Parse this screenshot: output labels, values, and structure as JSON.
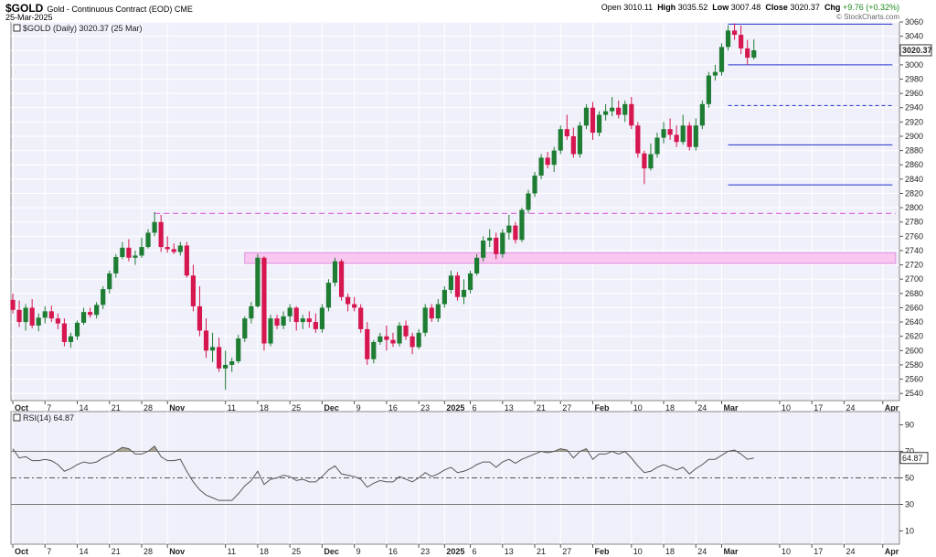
{
  "header": {
    "symbol": "$GOLD",
    "description": "Gold - Continuous Contract (EOD) CME",
    "date": "25-Mar-2025",
    "open_label": "Open",
    "open": "3010.11",
    "high_label": "High",
    "high": "3035.52",
    "low_label": "Low",
    "low": "3007.48",
    "close_label": "Close",
    "close": "3020.37",
    "chg_label": "Chg",
    "chg": "+9.76 (+0.32%)",
    "copyright": "© StockCharts.com"
  },
  "price_legend": "$GOLD (Daily) 3020.37 (25 Mar)",
  "rsi_legend": "RSI(14) 64.87",
  "last_price_label": "3020.37",
  "last_rsi_label": "64.87",
  "colors": {
    "up": "#1e7d32",
    "down": "#d6164f",
    "panel_bg": "#f0f0fb",
    "level_line": "#2233cc",
    "zone": "#f8c8f0",
    "resistance": "#e070e0",
    "rsi_line": "#555555",
    "rsi_fill": "#a09880"
  },
  "chart_data": [
    {
      "type": "candlestick",
      "title": "$GOLD (Daily) 3020.37 (25 Mar)",
      "ylim": [
        2530,
        3060
      ],
      "y_ticks": [
        2540,
        2560,
        2580,
        2600,
        2620,
        2640,
        2660,
        2680,
        2700,
        2720,
        2740,
        2760,
        2780,
        2800,
        2820,
        2840,
        2860,
        2880,
        2900,
        2920,
        2940,
        2960,
        2980,
        3000,
        3020,
        3040,
        3060
      ],
      "x_tick_labels": [
        "Oct",
        "7",
        "14",
        "21",
        "28",
        "Nov",
        "11",
        "18",
        "25",
        "Dec",
        "9",
        "16",
        "23",
        "2025",
        "6",
        "13",
        "21",
        "27",
        "Feb",
        "10",
        "18",
        "24",
        "Mar",
        "10",
        "17",
        "24",
        "Apr"
      ],
      "x_tick_index": [
        0,
        5,
        10,
        15,
        20,
        24,
        33,
        38,
        43,
        48,
        53,
        58,
        63,
        67,
        71,
        76,
        81,
        85,
        90,
        96,
        101,
        106,
        110,
        119,
        124,
        129,
        135
      ],
      "candles": [
        [
          2671,
          2680,
          2652,
          2657
        ],
        [
          2657,
          2670,
          2633,
          2640
        ],
        [
          2640,
          2665,
          2628,
          2660
        ],
        [
          2660,
          2672,
          2631,
          2635
        ],
        [
          2635,
          2652,
          2627,
          2646
        ],
        [
          2646,
          2662,
          2638,
          2655
        ],
        [
          2655,
          2663,
          2640,
          2645
        ],
        [
          2645,
          2652,
          2630,
          2638
        ],
        [
          2638,
          2645,
          2606,
          2612
        ],
        [
          2612,
          2625,
          2604,
          2620
        ],
        [
          2620,
          2642,
          2615,
          2639
        ],
        [
          2639,
          2660,
          2636,
          2654
        ],
        [
          2654,
          2660,
          2646,
          2650
        ],
        [
          2650,
          2668,
          2645,
          2664
        ],
        [
          2664,
          2690,
          2658,
          2686
        ],
        [
          2686,
          2712,
          2680,
          2708
        ],
        [
          2708,
          2735,
          2702,
          2731
        ],
        [
          2731,
          2752,
          2728,
          2744
        ],
        [
          2744,
          2756,
          2725,
          2730
        ],
        [
          2730,
          2740,
          2720,
          2733
        ],
        [
          2733,
          2758,
          2730,
          2745
        ],
        [
          2745,
          2770,
          2743,
          2765
        ],
        [
          2765,
          2794,
          2760,
          2780
        ],
        [
          2780,
          2790,
          2738,
          2745
        ],
        [
          2745,
          2760,
          2737,
          2742
        ],
        [
          2742,
          2750,
          2735,
          2738
        ],
        [
          2738,
          2752,
          2733,
          2747
        ],
        [
          2747,
          2752,
          2702,
          2705
        ],
        [
          2705,
          2720,
          2655,
          2662
        ],
        [
          2662,
          2690,
          2620,
          2628
        ],
        [
          2628,
          2645,
          2590,
          2600
        ],
        [
          2600,
          2625,
          2584,
          2605
        ],
        [
          2605,
          2618,
          2570,
          2575
        ],
        [
          2575,
          2600,
          2545,
          2580
        ],
        [
          2580,
          2590,
          2570,
          2585
        ],
        [
          2585,
          2622,
          2582,
          2617
        ],
        [
          2617,
          2648,
          2612,
          2645
        ],
        [
          2645,
          2668,
          2638,
          2662
        ],
        [
          2662,
          2735,
          2660,
          2730
        ],
        [
          2730,
          2732,
          2600,
          2610
        ],
        [
          2610,
          2650,
          2606,
          2645
        ],
        [
          2645,
          2650,
          2630,
          2635
        ],
        [
          2635,
          2655,
          2630,
          2648
        ],
        [
          2648,
          2665,
          2640,
          2660
        ],
        [
          2660,
          2662,
          2628,
          2640
        ],
        [
          2640,
          2650,
          2630,
          2645
        ],
        [
          2645,
          2655,
          2632,
          2640
        ],
        [
          2640,
          2652,
          2625,
          2630
        ],
        [
          2630,
          2665,
          2625,
          2660
        ],
        [
          2660,
          2700,
          2655,
          2695
        ],
        [
          2695,
          2730,
          2690,
          2725
        ],
        [
          2725,
          2728,
          2670,
          2675
        ],
        [
          2675,
          2680,
          2655,
          2665
        ],
        [
          2665,
          2675,
          2655,
          2660
        ],
        [
          2660,
          2665,
          2625,
          2630
        ],
        [
          2630,
          2640,
          2580,
          2588
        ],
        [
          2588,
          2615,
          2582,
          2612
        ],
        [
          2612,
          2625,
          2608,
          2620
        ],
        [
          2620,
          2635,
          2600,
          2615
        ],
        [
          2615,
          2625,
          2605,
          2610
        ],
        [
          2610,
          2640,
          2606,
          2635
        ],
        [
          2635,
          2642,
          2615,
          2620
        ],
        [
          2620,
          2625,
          2595,
          2605
        ],
        [
          2605,
          2630,
          2602,
          2625
        ],
        [
          2625,
          2665,
          2620,
          2660
        ],
        [
          2660,
          2665,
          2640,
          2645
        ],
        [
          2645,
          2672,
          2640,
          2665
        ],
        [
          2665,
          2690,
          2660,
          2685
        ],
        [
          2685,
          2712,
          2680,
          2705
        ],
        [
          2705,
          2710,
          2670,
          2675
        ],
        [
          2675,
          2700,
          2665,
          2685
        ],
        [
          2685,
          2712,
          2680,
          2708
        ],
        [
          2708,
          2735,
          2705,
          2730
        ],
        [
          2730,
          2760,
          2725,
          2754
        ],
        [
          2754,
          2770,
          2745,
          2758
        ],
        [
          2758,
          2765,
          2728,
          2735
        ],
        [
          2735,
          2770,
          2730,
          2765
        ],
        [
          2765,
          2790,
          2755,
          2775
        ],
        [
          2775,
          2780,
          2750,
          2755
        ],
        [
          2755,
          2800,
          2752,
          2797
        ],
        [
          2797,
          2825,
          2792,
          2820
        ],
        [
          2820,
          2850,
          2815,
          2845
        ],
        [
          2845,
          2875,
          2840,
          2870
        ],
        [
          2870,
          2878,
          2855,
          2860
        ],
        [
          2860,
          2885,
          2850,
          2880
        ],
        [
          2880,
          2915,
          2875,
          2910
        ],
        [
          2910,
          2930,
          2895,
          2900
        ],
        [
          2900,
          2912,
          2870,
          2875
        ],
        [
          2875,
          2920,
          2870,
          2915
        ],
        [
          2915,
          2945,
          2910,
          2940
        ],
        [
          2940,
          2948,
          2895,
          2905
        ],
        [
          2905,
          2935,
          2900,
          2930
        ],
        [
          2930,
          2945,
          2922,
          2935
        ],
        [
          2935,
          2955,
          2928,
          2940
        ],
        [
          2940,
          2950,
          2925,
          2930
        ],
        [
          2930,
          2950,
          2920,
          2945
        ],
        [
          2945,
          2955,
          2910,
          2915
        ],
        [
          2915,
          2920,
          2870,
          2876
        ],
        [
          2876,
          2880,
          2833,
          2855
        ],
        [
          2855,
          2890,
          2852,
          2875
        ],
        [
          2875,
          2905,
          2870,
          2898
        ],
        [
          2898,
          2920,
          2890,
          2910
        ],
        [
          2910,
          2925,
          2895,
          2902
        ],
        [
          2902,
          2915,
          2885,
          2892
        ],
        [
          2892,
          2930,
          2888,
          2915
        ],
        [
          2915,
          2920,
          2880,
          2885
        ],
        [
          2885,
          2925,
          2880,
          2915
        ],
        [
          2915,
          2950,
          2910,
          2945
        ],
        [
          2945,
          2990,
          2940,
          2985
        ],
        [
          2985,
          3000,
          2978,
          2990
        ],
        [
          2990,
          3030,
          2985,
          3025
        ],
        [
          3025,
          3055,
          3020,
          3048
        ],
        [
          3048,
          3058,
          3035,
          3042
        ],
        [
          3042,
          3055,
          3015,
          3023
        ],
        [
          3023,
          3035,
          3000,
          3010
        ],
        [
          3010.11,
          3035.52,
          3007.48,
          3020.37
        ]
      ],
      "levels": [
        {
          "name": "high-level-line",
          "value": 3057,
          "from": 111,
          "style": "solid"
        },
        {
          "name": "breakout-level-line",
          "value": 3000,
          "from": 111,
          "style": "solid"
        },
        {
          "name": "mid-level-line",
          "value": 2943,
          "from": 111,
          "style": "dashed"
        },
        {
          "name": "support-level-line",
          "value": 2888,
          "from": 111,
          "style": "solid"
        },
        {
          "name": "low-level-line",
          "value": 2832,
          "from": 111,
          "style": "solid"
        }
      ],
      "resistance_line": {
        "value": 2792,
        "from": 22,
        "to": 137
      },
      "zone": {
        "from_value": 2722,
        "to_value": 2737,
        "from": 36,
        "to": 137
      }
    },
    {
      "type": "line",
      "title": "RSI(14) 64.87",
      "ylim": [
        0,
        100
      ],
      "y_ticks": [
        10,
        30,
        50,
        70,
        90
      ],
      "overbought": 70,
      "oversold": 30,
      "midline": 50,
      "x_tick_labels": [
        "Oct",
        "7",
        "14",
        "21",
        "28",
        "Nov",
        "11",
        "18",
        "25",
        "Dec",
        "9",
        "16",
        "23",
        "2025",
        "6",
        "13",
        "21",
        "27",
        "Feb",
        "10",
        "18",
        "24",
        "Mar",
        "10",
        "17",
        "24",
        "Apr"
      ],
      "x_tick_index": [
        0,
        5,
        10,
        15,
        20,
        24,
        33,
        38,
        43,
        48,
        53,
        58,
        63,
        67,
        71,
        76,
        81,
        85,
        90,
        96,
        101,
        106,
        110,
        119,
        124,
        129,
        135
      ],
      "values": [
        72,
        65,
        66,
        63,
        63,
        64,
        63,
        60,
        55,
        57,
        60,
        62,
        61,
        62,
        65,
        67,
        70,
        73,
        72,
        68,
        68,
        70,
        74,
        66,
        63,
        63,
        64,
        55,
        47,
        41,
        37,
        35,
        33,
        33,
        33,
        38,
        44,
        48,
        55,
        45,
        49,
        50,
        52,
        51,
        48,
        49,
        47,
        47,
        51,
        56,
        59,
        53,
        52,
        51,
        49,
        43,
        46,
        48,
        47,
        47,
        51,
        49,
        47,
        50,
        54,
        51,
        53,
        56,
        58,
        54,
        55,
        57,
        60,
        62,
        62,
        58,
        62,
        64,
        61,
        64,
        66,
        68,
        70,
        69,
        70,
        72,
        71,
        65,
        70,
        72,
        64,
        68,
        68,
        70,
        68,
        70,
        65,
        59,
        54,
        55,
        58,
        60,
        58,
        56,
        58,
        53,
        57,
        60,
        64,
        64,
        67,
        70,
        71,
        68,
        64,
        65
      ]
    }
  ]
}
